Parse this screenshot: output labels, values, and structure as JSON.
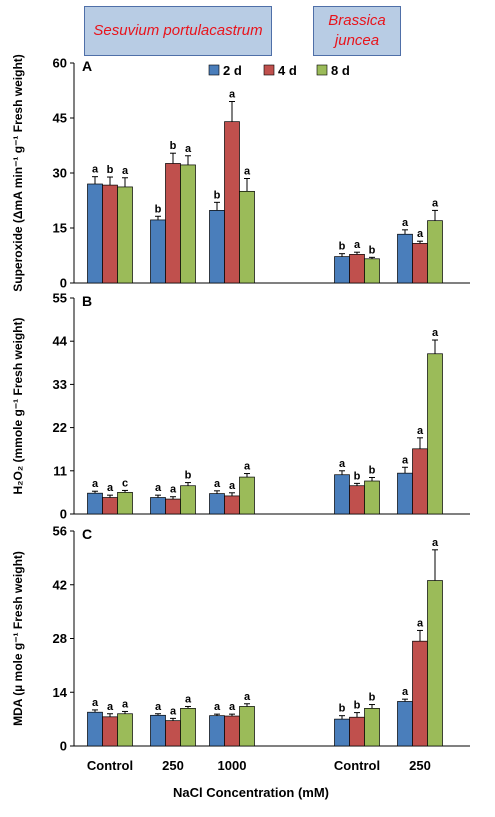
{
  "species": [
    {
      "name": "Sesuvium portulacastrum"
    },
    {
      "name": "Brassica juncea"
    }
  ],
  "x_axis": {
    "title": "NaCl Concentration (mM)",
    "groups": [
      "Control",
      "250",
      "1000",
      "Control",
      "250"
    ]
  },
  "legend": {
    "placement": "top-center",
    "entries": [
      {
        "label": "2 d",
        "color": "#4a7ebb"
      },
      {
        "label": "4 d",
        "color": "#c0504d"
      },
      {
        "label": "8 d",
        "color": "#9bbb59"
      }
    ]
  },
  "chart_data": [
    {
      "type": "bar",
      "panel": "A",
      "ylabel": "Superoxide (ΔmA min⁻¹ g⁻¹ Fresh weight)",
      "ylim": [
        0,
        60
      ],
      "yticks": [
        0,
        15,
        30,
        45,
        60
      ],
      "categories": [
        "Control",
        "250",
        "1000",
        "Control",
        "250"
      ],
      "series": [
        {
          "name": "2 d",
          "values": [
            27.0,
            17.2,
            19.8,
            7.2,
            13.3
          ],
          "errors": [
            2.0,
            1.0,
            2.2,
            0.8,
            1.2
          ],
          "letters": [
            "a",
            "b",
            "b",
            "b",
            "a"
          ]
        },
        {
          "name": "4 d",
          "values": [
            26.7,
            32.6,
            44.0,
            7.8,
            10.8
          ],
          "errors": [
            2.2,
            2.8,
            5.5,
            0.6,
            0.6
          ],
          "letters": [
            "b",
            "b",
            "a",
            "a",
            "a"
          ]
        },
        {
          "name": "8 d",
          "values": [
            26.2,
            32.2,
            25.0,
            6.6,
            17.0
          ],
          "errors": [
            2.5,
            2.5,
            3.5,
            0.4,
            2.8
          ],
          "letters": [
            "a",
            "a",
            "a",
            "b",
            "a"
          ]
        }
      ]
    },
    {
      "type": "bar",
      "panel": "B",
      "ylabel": "H₂O₂ (mmole g⁻¹ Fresh weight)",
      "ylim": [
        0,
        55
      ],
      "yticks": [
        0,
        11,
        22,
        33,
        44,
        55
      ],
      "categories": [
        "Control",
        "250",
        "1000",
        "Control",
        "250"
      ],
      "series": [
        {
          "name": "2 d",
          "values": [
            5.3,
            4.2,
            5.2,
            10.0,
            10.4
          ],
          "errors": [
            0.5,
            0.6,
            0.7,
            1.0,
            1.5
          ],
          "letters": [
            "a",
            "a",
            "a",
            "a",
            "a"
          ]
        },
        {
          "name": "4 d",
          "values": [
            4.2,
            3.8,
            4.6,
            7.2,
            16.6
          ],
          "errors": [
            0.6,
            0.6,
            0.8,
            0.6,
            2.8
          ],
          "letters": [
            "a",
            "a",
            "a",
            "b",
            "a"
          ]
        },
        {
          "name": "8 d",
          "values": [
            5.5,
            7.2,
            9.4,
            8.4,
            40.8
          ],
          "errors": [
            0.5,
            0.8,
            0.9,
            0.9,
            3.5
          ],
          "letters": [
            "c",
            "b",
            "a",
            "b",
            "a"
          ]
        }
      ]
    },
    {
      "type": "bar",
      "panel": "C",
      "ylabel": "MDA (µ mole g⁻¹ Fresh weight)",
      "ylim": [
        0,
        56
      ],
      "yticks": [
        0,
        14,
        28,
        42,
        56
      ],
      "categories": [
        "Control",
        "250",
        "1000",
        "Control",
        "250"
      ],
      "series": [
        {
          "name": "2 d",
          "values": [
            8.8,
            8.0,
            7.9,
            7.0,
            11.6
          ],
          "errors": [
            0.6,
            0.4,
            0.4,
            0.9,
            0.6
          ],
          "letters": [
            "a",
            "a",
            "a",
            "b",
            "a"
          ]
        },
        {
          "name": "4 d",
          "values": [
            7.6,
            6.6,
            7.8,
            7.5,
            27.3
          ],
          "errors": [
            0.8,
            0.6,
            0.5,
            1.2,
            2.8
          ],
          "letters": [
            "a",
            "a",
            "a",
            "b",
            "a"
          ]
        },
        {
          "name": "8 d",
          "values": [
            8.4,
            9.8,
            10.3,
            9.8,
            43.1
          ],
          "errors": [
            0.6,
            0.5,
            0.7,
            1.0,
            8.0
          ],
          "letters": [
            "a",
            "a",
            "a",
            "b",
            "a"
          ]
        }
      ]
    }
  ]
}
